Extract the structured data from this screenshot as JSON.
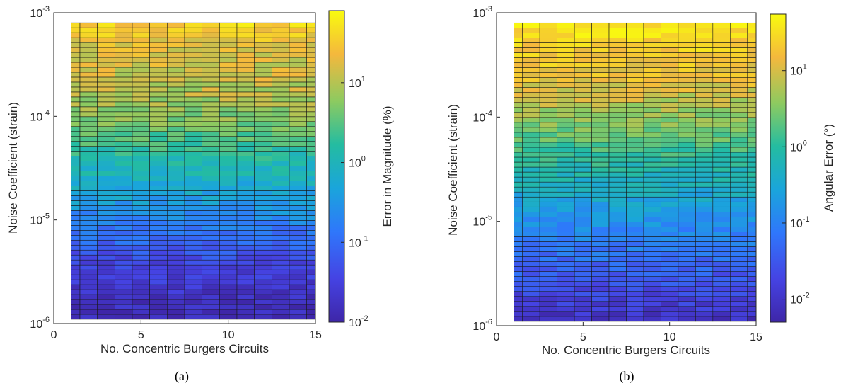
{
  "chart_data": [
    {
      "type": "heatmap",
      "panel_label": "(a)",
      "xlabel": "No. Concentric Burgers Circuits",
      "ylabel": "Noise Coefficient (strain)",
      "colorbar_label": "Error in Magnitude (%)",
      "x_scale": "linear",
      "y_scale": "log",
      "color_scale": "log",
      "colormap": "parula",
      "xlim": [
        0,
        15
      ],
      "ylim": [
        1e-06,
        0.001
      ],
      "clim": [
        0.01,
        80
      ],
      "x": [
        1,
        2,
        3,
        4,
        5,
        6,
        7,
        8,
        9,
        10,
        11,
        12,
        13,
        14,
        15
      ],
      "y_range": [
        1.1e-06,
        0.0008
      ],
      "y_rows": 60,
      "x_ticks": [
        "0",
        "5",
        "10",
        "15"
      ],
      "y_ticks": [
        {
          "base": "10",
          "exp": "-6"
        },
        {
          "base": "10",
          "exp": "-5"
        },
        {
          "base": "10",
          "exp": "-4"
        },
        {
          "base": "10",
          "exp": "-3"
        }
      ],
      "colorbar_ticks": [
        {
          "base": "10",
          "exp": "-2"
        },
        {
          "base": "10",
          "exp": "-1"
        },
        {
          "base": "10",
          "exp": "0"
        },
        {
          "base": "10",
          "exp": "1"
        }
      ],
      "value_profile": [
        {
          "y": 1.1e-06,
          "value": 0.012
        },
        {
          "y": 2e-06,
          "value": 0.02
        },
        {
          "y": 4e-06,
          "value": 0.04
        },
        {
          "y": 1e-05,
          "value": 0.2
        },
        {
          "y": 2e-05,
          "value": 0.6
        },
        {
          "y": 5e-05,
          "value": 2
        },
        {
          "y": 0.0001,
          "value": 6
        },
        {
          "y": 0.0002,
          "value": 12
        },
        {
          "y": 0.0005,
          "value": 20
        },
        {
          "y": 0.0008,
          "value": 40
        }
      ]
    },
    {
      "type": "heatmap",
      "panel_label": "(b)",
      "xlabel": "No. Concentric Burgers Circuits",
      "ylabel": "Noise Coefficient (strain)",
      "colorbar_label": "Angular Error (°)",
      "x_scale": "linear",
      "y_scale": "log",
      "color_scale": "log",
      "colormap": "parula",
      "xlim": [
        0,
        15
      ],
      "ylim": [
        1e-06,
        0.001
      ],
      "clim": [
        0.005,
        55
      ],
      "x": [
        1,
        2,
        3,
        4,
        5,
        6,
        7,
        8,
        9,
        10,
        11,
        12,
        13,
        14,
        15
      ],
      "y_range": [
        1.1e-06,
        0.0008
      ],
      "y_rows": 60,
      "x_ticks": [
        "0",
        "5",
        "10",
        "15"
      ],
      "y_ticks": [
        {
          "base": "10",
          "exp": "-6"
        },
        {
          "base": "10",
          "exp": "-5"
        },
        {
          "base": "10",
          "exp": "-4"
        },
        {
          "base": "10",
          "exp": "-3"
        }
      ],
      "colorbar_ticks": [
        {
          "base": "10",
          "exp": "-2"
        },
        {
          "base": "10",
          "exp": "-1"
        },
        {
          "base": "10",
          "exp": "0"
        },
        {
          "base": "10",
          "exp": "1"
        }
      ],
      "value_profile": [
        {
          "y": 1.1e-06,
          "value": 0.008
        },
        {
          "y": 2e-06,
          "value": 0.02
        },
        {
          "y": 4e-06,
          "value": 0.05
        },
        {
          "y": 1e-05,
          "value": 0.15
        },
        {
          "y": 2e-05,
          "value": 0.4
        },
        {
          "y": 5e-05,
          "value": 1.5
        },
        {
          "y": 0.0001,
          "value": 4
        },
        {
          "y": 0.0002,
          "value": 12
        },
        {
          "y": 0.0005,
          "value": 25
        },
        {
          "y": 0.0008,
          "value": 35
        }
      ]
    }
  ]
}
